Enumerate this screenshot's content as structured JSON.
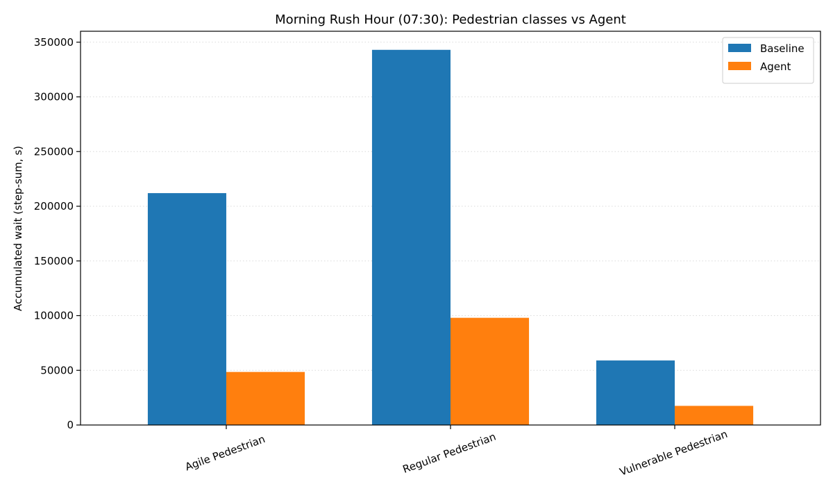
{
  "chart_data": {
    "type": "bar",
    "title": "Morning Rush Hour (07:30): Pedestrian classes vs Agent",
    "xlabel": "",
    "ylabel": "Accumulated wait (step-sum, s)",
    "categories": [
      "Agile Pedestrian",
      "Regular Pedestrian",
      "Vulnerable Pedestrian"
    ],
    "series": [
      {
        "name": "Baseline",
        "color": "#1f77b4",
        "values": [
          212000,
          343000,
          59000
        ]
      },
      {
        "name": "Agent",
        "color": "#ff7f0e",
        "values": [
          48500,
          98000,
          17500
        ]
      }
    ],
    "ylim": [
      0,
      360000
    ],
    "yticks": [
      0,
      50000,
      100000,
      150000,
      200000,
      250000,
      300000,
      350000
    ],
    "ytick_labels": [
      "0",
      "50000",
      "100000",
      "150000",
      "200000",
      "250000",
      "300000",
      "350000"
    ],
    "grid": "horizontal dotted",
    "legend_position": "top-right"
  }
}
